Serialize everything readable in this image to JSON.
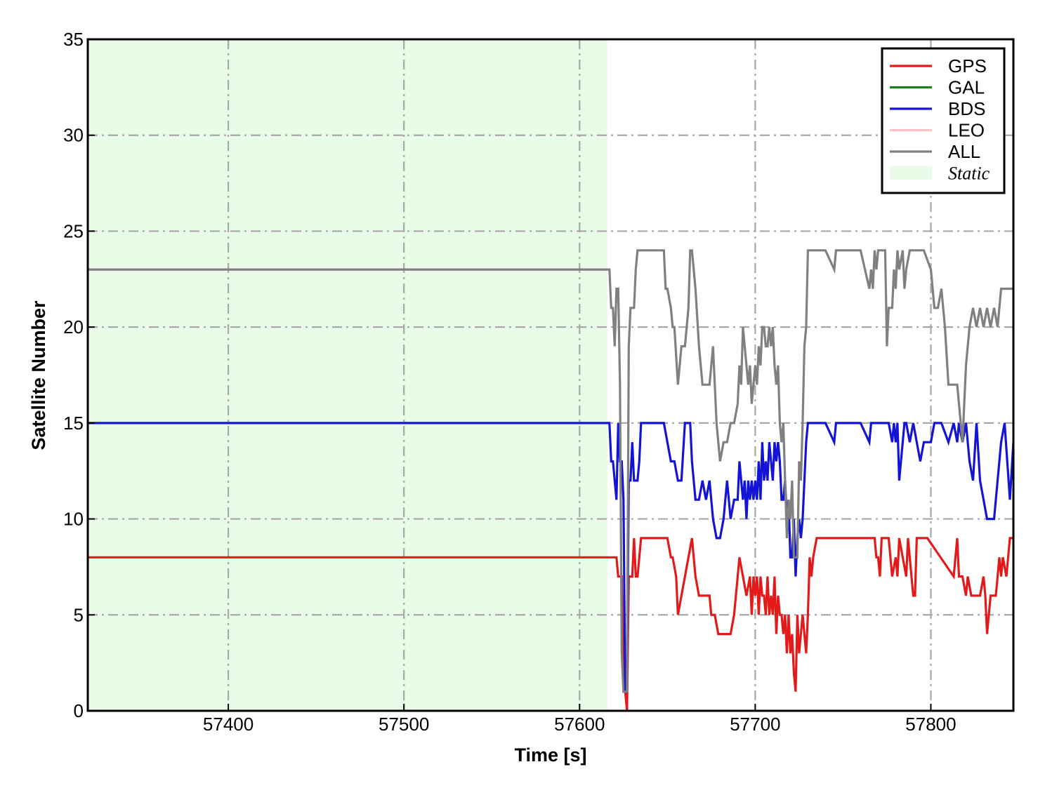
{
  "chart_data": {
    "type": "line",
    "title": "",
    "xlabel": "Time [s]",
    "ylabel": "Satellite Number",
    "xlim": [
      57320,
      57847
    ],
    "ylim": [
      0,
      35
    ],
    "xticks": [
      57400,
      57500,
      57600,
      57700,
      57800
    ],
    "yticks": [
      0,
      5,
      10,
      15,
      20,
      25,
      30,
      35
    ],
    "grid": true,
    "legend_position": "top-right",
    "static_region": {
      "label": "Static",
      "x_start": 57320,
      "x_end": 57616,
      "color": "#e8fce8"
    },
    "series": [
      {
        "name": "GPS",
        "color": "#e41a1a",
        "x": [
          57320,
          57620,
          57621,
          57622,
          57624,
          57625,
          57626,
          57627,
          57628,
          57630,
          57631,
          57632,
          57633,
          57635,
          57650,
          57652,
          57653,
          57655,
          57656,
          57658,
          57660,
          57662,
          57664,
          57666,
          57668,
          57672,
          57674,
          57675,
          57677,
          57679,
          57680,
          57682,
          57686,
          57688,
          57690,
          57691,
          57693,
          57695,
          57697,
          57698,
          57699,
          57700,
          57701,
          57702,
          57703,
          57704,
          57705,
          57706,
          57707,
          57708,
          57709,
          57710,
          57711,
          57712,
          57713,
          57714,
          57715,
          57716,
          57717,
          57718,
          57719,
          57720,
          57721,
          57722,
          57723,
          57724,
          57725,
          57726,
          57727,
          57728,
          57729,
          57730,
          57731,
          57732,
          57733,
          57735,
          57746,
          57748,
          57766,
          57768,
          57769,
          57770,
          57771,
          57772,
          57773,
          57774,
          57776,
          57778,
          57780,
          57781,
          57782,
          57784,
          57786,
          57787,
          57789,
          57790,
          57791,
          57792,
          57794,
          57796,
          57798,
          57813,
          57814,
          57815,
          57816,
          57818,
          57820,
          57821,
          57823,
          57825,
          57826,
          57828,
          57830,
          57831,
          57832,
          57834,
          57835,
          57836,
          57837,
          57838,
          57839,
          57840,
          57841,
          57843,
          57845,
          57847
        ],
        "values": [
          8,
          8,
          8,
          7,
          7,
          1,
          1,
          0,
          7,
          7,
          9,
          7,
          7,
          9,
          9,
          8,
          8,
          7,
          5,
          6,
          7,
          8,
          9,
          7,
          6,
          6,
          6,
          5,
          5,
          4,
          4,
          4,
          4,
          5,
          7,
          8,
          7,
          6,
          7,
          5,
          7,
          6,
          7,
          5,
          7,
          6,
          6,
          5,
          7,
          5,
          6,
          5,
          7,
          4,
          6,
          5,
          5,
          4,
          5,
          3,
          5,
          3,
          4,
          2,
          1,
          5,
          3,
          4,
          5,
          4,
          3,
          5,
          8,
          7,
          8,
          9,
          9,
          9,
          9,
          9,
          8,
          8,
          7,
          9,
          9,
          9,
          9,
          7,
          8,
          7,
          9,
          8,
          7,
          9,
          7,
          6,
          6,
          9,
          9,
          9,
          9,
          7,
          8,
          9,
          7,
          7,
          6,
          7,
          6,
          6,
          6,
          6,
          7,
          6,
          4,
          6,
          6,
          6,
          6,
          7,
          8,
          7,
          8,
          7,
          9,
          9
        ],
        "stroke_width": 3.2
      },
      {
        "name": "GAL",
        "color": "#1a7f1a",
        "x": [],
        "values": [],
        "stroke_width": 3.2
      },
      {
        "name": "BDS",
        "color": "#1414d6",
        "x": [
          57320,
          57615,
          57616,
          57617,
          57618,
          57619,
          57620,
          57621,
          57622,
          57623,
          57624,
          57625,
          57626,
          57627,
          57628,
          57629,
          57630,
          57631,
          57632,
          57633,
          57634,
          57635,
          57636,
          57648,
          57650,
          57652,
          57654,
          57656,
          57658,
          57660,
          57662,
          57663,
          57664,
          57666,
          57668,
          57670,
          57672,
          57674,
          57676,
          57678,
          57680,
          57682,
          57684,
          57686,
          57688,
          57690,
          57691,
          57692,
          57693,
          57694,
          57695,
          57696,
          57697,
          57698,
          57699,
          57700,
          57701,
          57702,
          57703,
          57704,
          57705,
          57706,
          57707,
          57708,
          57709,
          57710,
          57711,
          57712,
          57713,
          57714,
          57715,
          57716,
          57717,
          57718,
          57719,
          57720,
          57721,
          57722,
          57723,
          57724,
          57725,
          57726,
          57727,
          57728,
          57729,
          57730,
          57732,
          57734,
          57736,
          57738,
          57740,
          57745,
          57746,
          57750,
          57754,
          57760,
          57765,
          57766,
          57770,
          57775,
          57776,
          57778,
          57779,
          57780,
          57781,
          57782,
          57784,
          57785,
          57786,
          57788,
          57790,
          57792,
          57794,
          57796,
          57800,
          57802,
          57804,
          57806,
          57810,
          57813,
          57815,
          57816,
          57818,
          57820,
          57822,
          57824,
          57826,
          57828,
          57830,
          57832,
          57834,
          57836,
          57838,
          57840,
          57842,
          57845,
          57847
        ],
        "values": [
          15,
          15,
          15,
          15,
          13,
          13,
          12,
          11,
          15,
          13,
          13,
          11,
          1,
          1,
          12,
          12,
          14,
          12,
          12,
          12,
          13,
          15,
          15,
          15,
          14,
          13,
          13,
          12,
          12,
          15,
          15,
          15,
          13,
          11,
          11,
          12,
          11,
          12,
          10,
          9,
          9,
          10,
          12,
          10,
          11,
          11,
          13,
          12,
          11,
          12,
          10,
          12,
          11,
          12,
          11,
          12,
          11,
          13,
          11,
          14,
          12,
          13,
          12,
          14,
          13,
          12,
          14,
          13,
          14,
          13,
          11,
          11,
          12,
          10,
          11,
          8,
          8,
          10,
          7,
          9,
          10,
          9,
          10,
          12,
          14,
          15,
          15,
          15,
          15,
          15,
          15,
          14,
          15,
          15,
          15,
          15,
          14,
          15,
          15,
          15,
          15,
          14,
          15,
          14,
          15,
          12,
          14,
          15,
          15,
          14,
          15,
          14,
          13,
          14,
          14,
          15,
          15,
          15,
          14,
          15,
          14,
          15,
          14,
          15,
          13,
          12,
          15,
          12,
          11,
          10,
          10,
          10,
          12,
          14,
          15,
          11,
          14
        ],
        "stroke_width": 3.2
      },
      {
        "name": "LEO",
        "color": "#ffc0cb",
        "x": [],
        "values": [],
        "stroke_width": 3.2
      },
      {
        "name": "ALL",
        "color": "#808080",
        "x": [
          57320,
          57615,
          57616,
          57617,
          57618,
          57619,
          57620,
          57621,
          57622,
          57623,
          57624,
          57625,
          57626,
          57627,
          57628,
          57629,
          57630,
          57631,
          57632,
          57633,
          57634,
          57635,
          57636,
          57648,
          57649,
          57650,
          57652,
          57653,
          57654,
          57656,
          57658,
          57660,
          57662,
          57663,
          57664,
          57666,
          57668,
          57670,
          57672,
          57674,
          57676,
          57678,
          57680,
          57682,
          57684,
          57686,
          57688,
          57690,
          57691,
          57692,
          57693,
          57694,
          57695,
          57696,
          57697,
          57698,
          57699,
          57700,
          57701,
          57702,
          57703,
          57704,
          57705,
          57706,
          57707,
          57708,
          57709,
          57710,
          57711,
          57712,
          57713,
          57714,
          57715,
          57716,
          57717,
          57718,
          57719,
          57720,
          57721,
          57722,
          57723,
          57724,
          57725,
          57726,
          57727,
          57728,
          57729,
          57730,
          57732,
          57734,
          57736,
          57738,
          57740,
          57745,
          57746,
          57750,
          57754,
          57760,
          57765,
          57766,
          57767,
          57768,
          57769,
          57770,
          57771,
          57772,
          57774,
          57775,
          57776,
          57778,
          57779,
          57780,
          57781,
          57782,
          57784,
          57785,
          57786,
          57788,
          57790,
          57792,
          57794,
          57796,
          57800,
          57802,
          57804,
          57806,
          57808,
          57810,
          57813,
          57815,
          57816,
          57818,
          57820,
          57822,
          57824,
          57826,
          57828,
          57830,
          57832,
          57834,
          57836,
          57838,
          57840,
          57842,
          57844,
          57846,
          57847
        ],
        "values": [
          23,
          23,
          23,
          23,
          21,
          21,
          19,
          22,
          22,
          17,
          3,
          1,
          1,
          1,
          19,
          21,
          21,
          21,
          23,
          24,
          24,
          24,
          24,
          24,
          22,
          22,
          21,
          20,
          20,
          17,
          19,
          19,
          21,
          24,
          24,
          22,
          19,
          17,
          17,
          17,
          19,
          15,
          13,
          14,
          14,
          15,
          15,
          16,
          18,
          17,
          20,
          19,
          18,
          17,
          18,
          16,
          17,
          18,
          17,
          19,
          18,
          20,
          20,
          19,
          19,
          20,
          19,
          20,
          18,
          17,
          18,
          15,
          14,
          15,
          12,
          9,
          11,
          10,
          12,
          8,
          8,
          8,
          13,
          12,
          15,
          19,
          20,
          24,
          24,
          24,
          24,
          24,
          24,
          23,
          24,
          24,
          24,
          24,
          22,
          23,
          22,
          24,
          23,
          24,
          24,
          24,
          24,
          19,
          21,
          21,
          23,
          22,
          24,
          23,
          24,
          22,
          23,
          24,
          24,
          24,
          24,
          24,
          23,
          21,
          21,
          22,
          20,
          17,
          17,
          17,
          16,
          14,
          18,
          20,
          21,
          20,
          21,
          20,
          21,
          20,
          21,
          20,
          22,
          22,
          22,
          22,
          22
        ],
        "stroke_width": 3.2
      }
    ]
  }
}
